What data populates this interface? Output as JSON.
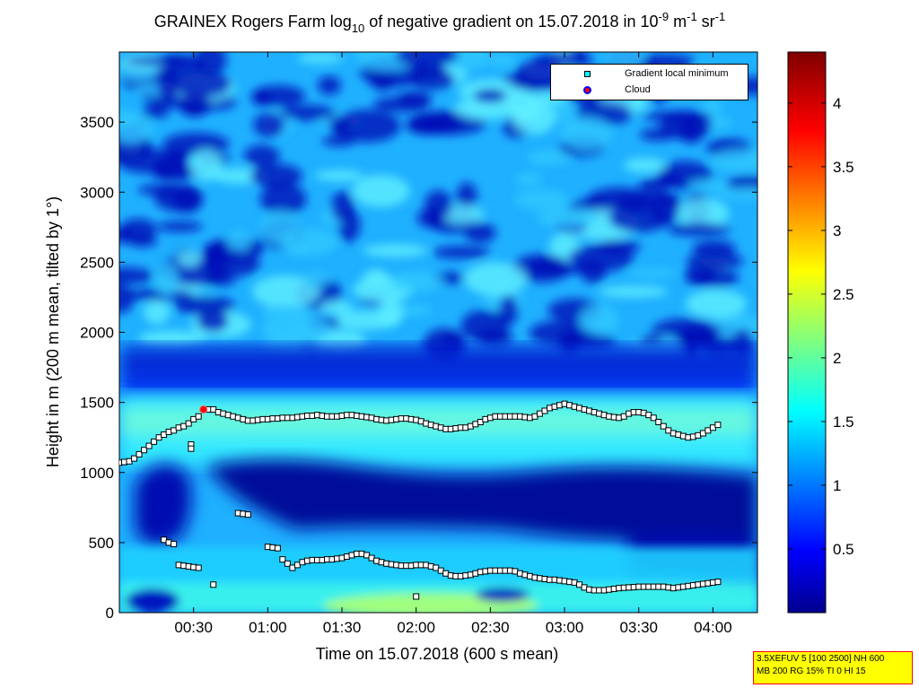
{
  "chart_data": {
    "type": "heatmap",
    "title": {
      "prefix": "GRAINEX Rogers Farm log",
      "sub": "10",
      "middle": " of negative gradient on 15.07.2018 in 10",
      "sup1": "-9",
      "mid2": " m",
      "sup2": "-1",
      "mid3": " sr",
      "sup3": "-1"
    },
    "xlabel": "Time on 15.07.2018 (600 s mean)",
    "ylabel": "Height in m (200 m mean, tilted by 1°)",
    "xlim": [
      0,
      258
    ],
    "ylim": [
      0,
      4000
    ],
    "x_ticks": [
      {
        "value": 30,
        "label": "00:30"
      },
      {
        "value": 60,
        "label": "01:00"
      },
      {
        "value": 90,
        "label": "01:30"
      },
      {
        "value": 120,
        "label": "02:00"
      },
      {
        "value": 150,
        "label": "02:30"
      },
      {
        "value": 180,
        "label": "03:00"
      },
      {
        "value": 210,
        "label": "03:30"
      },
      {
        "value": 240,
        "label": "04:00"
      }
    ],
    "y_ticks": [
      {
        "value": 0,
        "label": "0"
      },
      {
        "value": 500,
        "label": "500"
      },
      {
        "value": 1000,
        "label": "1000"
      },
      {
        "value": 1500,
        "label": "1500"
      },
      {
        "value": 2000,
        "label": "2000"
      },
      {
        "value": 2500,
        "label": "2500"
      },
      {
        "value": 3000,
        "label": "3000"
      },
      {
        "value": 3500,
        "label": "3500"
      }
    ],
    "colorbar": {
      "min": 0,
      "max": 4.4,
      "ticks": [
        {
          "value": 0.5,
          "label": "0.5"
        },
        {
          "value": 1,
          "label": "1"
        },
        {
          "value": 1.5,
          "label": "1.5"
        },
        {
          "value": 2,
          "label": "2"
        },
        {
          "value": 2.5,
          "label": "2.5"
        },
        {
          "value": 3,
          "label": "3"
        },
        {
          "value": 3.5,
          "label": "3.5"
        },
        {
          "value": 4,
          "label": "4"
        }
      ],
      "colormap": "jet"
    },
    "legend": {
      "placement": "top-right",
      "entries": [
        {
          "label": "Gradient local minimum",
          "symbol": "square",
          "color": "#00ffff"
        },
        {
          "label": "Cloud",
          "symbol": "circle",
          "color": "#ff0000",
          "edge": "#0000ff"
        }
      ]
    },
    "series": [
      {
        "name": "Gradient local minimum",
        "points": [
          [
            0,
            1070
          ],
          [
            2,
            1075
          ],
          [
            4,
            1080
          ],
          [
            6,
            1100
          ],
          [
            8,
            1130
          ],
          [
            10,
            1160
          ],
          [
            12,
            1190
          ],
          [
            14,
            1220
          ],
          [
            16,
            1250
          ],
          [
            18,
            1270
          ],
          [
            20,
            1290
          ],
          [
            22,
            1300
          ],
          [
            24,
            1320
          ],
          [
            26,
            1330
          ],
          [
            28,
            1350
          ],
          [
            30,
            1380
          ],
          [
            32,
            1400
          ],
          [
            29,
            1200
          ],
          [
            29,
            1170
          ],
          [
            36,
            1450
          ],
          [
            38,
            1450
          ],
          [
            40,
            1430
          ],
          [
            42,
            1420
          ],
          [
            44,
            1410
          ],
          [
            46,
            1400
          ],
          [
            48,
            1390
          ],
          [
            50,
            1380
          ],
          [
            52,
            1370
          ],
          [
            54,
            1370
          ],
          [
            56,
            1375
          ],
          [
            58,
            1380
          ],
          [
            60,
            1380
          ],
          [
            62,
            1385
          ],
          [
            64,
            1385
          ],
          [
            66,
            1390
          ],
          [
            68,
            1390
          ],
          [
            70,
            1390
          ],
          [
            72,
            1395
          ],
          [
            74,
            1400
          ],
          [
            76,
            1405
          ],
          [
            78,
            1405
          ],
          [
            80,
            1410
          ],
          [
            82,
            1405
          ],
          [
            84,
            1400
          ],
          [
            86,
            1400
          ],
          [
            88,
            1400
          ],
          [
            90,
            1405
          ],
          [
            92,
            1410
          ],
          [
            94,
            1410
          ],
          [
            96,
            1405
          ],
          [
            98,
            1400
          ],
          [
            100,
            1395
          ],
          [
            102,
            1390
          ],
          [
            104,
            1380
          ],
          [
            106,
            1375
          ],
          [
            108,
            1370
          ],
          [
            110,
            1375
          ],
          [
            112,
            1380
          ],
          [
            114,
            1385
          ],
          [
            116,
            1385
          ],
          [
            118,
            1380
          ],
          [
            120,
            1375
          ],
          [
            122,
            1365
          ],
          [
            124,
            1350
          ],
          [
            126,
            1340
          ],
          [
            128,
            1330
          ],
          [
            130,
            1320
          ],
          [
            132,
            1310
          ],
          [
            134,
            1310
          ],
          [
            136,
            1315
          ],
          [
            138,
            1320
          ],
          [
            140,
            1320
          ],
          [
            142,
            1330
          ],
          [
            144,
            1345
          ],
          [
            146,
            1360
          ],
          [
            148,
            1380
          ],
          [
            150,
            1390
          ],
          [
            152,
            1400
          ],
          [
            154,
            1400
          ],
          [
            156,
            1400
          ],
          [
            158,
            1400
          ],
          [
            160,
            1400
          ],
          [
            162,
            1400
          ],
          [
            164,
            1395
          ],
          [
            166,
            1390
          ],
          [
            168,
            1400
          ],
          [
            170,
            1420
          ],
          [
            172,
            1440
          ],
          [
            174,
            1460
          ],
          [
            176,
            1470
          ],
          [
            178,
            1480
          ],
          [
            180,
            1490
          ],
          [
            182,
            1480
          ],
          [
            184,
            1470
          ],
          [
            186,
            1460
          ],
          [
            188,
            1450
          ],
          [
            190,
            1440
          ],
          [
            192,
            1430
          ],
          [
            194,
            1420
          ],
          [
            196,
            1410
          ],
          [
            198,
            1400
          ],
          [
            200,
            1395
          ],
          [
            202,
            1390
          ],
          [
            204,
            1400
          ],
          [
            206,
            1420
          ],
          [
            208,
            1430
          ],
          [
            210,
            1430
          ],
          [
            212,
            1425
          ],
          [
            214,
            1410
          ],
          [
            216,
            1390
          ],
          [
            218,
            1360
          ],
          [
            220,
            1330
          ],
          [
            222,
            1300
          ],
          [
            224,
            1280
          ],
          [
            226,
            1270
          ],
          [
            228,
            1260
          ],
          [
            230,
            1250
          ],
          [
            232,
            1255
          ],
          [
            234,
            1265
          ],
          [
            236,
            1280
          ],
          [
            238,
            1300
          ],
          [
            240,
            1320
          ],
          [
            242,
            1340
          ],
          [
            48,
            710
          ],
          [
            50,
            705
          ],
          [
            52,
            700
          ],
          [
            18,
            520
          ],
          [
            20,
            500
          ],
          [
            22,
            490
          ],
          [
            24,
            340
          ],
          [
            26,
            335
          ],
          [
            28,
            330
          ],
          [
            30,
            325
          ],
          [
            32,
            320
          ],
          [
            38,
            200
          ],
          [
            60,
            470
          ],
          [
            62,
            465
          ],
          [
            64,
            460
          ],
          [
            66,
            380
          ],
          [
            68,
            350
          ],
          [
            70,
            320
          ],
          [
            72,
            340
          ],
          [
            74,
            360
          ],
          [
            76,
            370
          ],
          [
            78,
            375
          ],
          [
            80,
            375
          ],
          [
            82,
            375
          ],
          [
            84,
            380
          ],
          [
            86,
            380
          ],
          [
            88,
            385
          ],
          [
            90,
            390
          ],
          [
            92,
            400
          ],
          [
            94,
            410
          ],
          [
            96,
            420
          ],
          [
            98,
            420
          ],
          [
            100,
            410
          ],
          [
            102,
            390
          ],
          [
            104,
            370
          ],
          [
            106,
            360
          ],
          [
            108,
            350
          ],
          [
            110,
            345
          ],
          [
            112,
            340
          ],
          [
            114,
            335
          ],
          [
            116,
            335
          ],
          [
            118,
            335
          ],
          [
            120,
            340
          ],
          [
            122,
            340
          ],
          [
            124,
            340
          ],
          [
            126,
            330
          ],
          [
            128,
            320
          ],
          [
            130,
            300
          ],
          [
            132,
            280
          ],
          [
            134,
            265
          ],
          [
            136,
            260
          ],
          [
            138,
            260
          ],
          [
            140,
            265
          ],
          [
            142,
            270
          ],
          [
            144,
            280
          ],
          [
            146,
            290
          ],
          [
            148,
            295
          ],
          [
            150,
            300
          ],
          [
            152,
            300
          ],
          [
            154,
            300
          ],
          [
            156,
            300
          ],
          [
            158,
            300
          ],
          [
            160,
            295
          ],
          [
            162,
            280
          ],
          [
            164,
            270
          ],
          [
            166,
            260
          ],
          [
            168,
            250
          ],
          [
            170,
            245
          ],
          [
            172,
            240
          ],
          [
            174,
            235
          ],
          [
            176,
            235
          ],
          [
            178,
            230
          ],
          [
            180,
            225
          ],
          [
            182,
            220
          ],
          [
            184,
            215
          ],
          [
            186,
            200
          ],
          [
            188,
            180
          ],
          [
            190,
            165
          ],
          [
            192,
            160
          ],
          [
            194,
            160
          ],
          [
            196,
            160
          ],
          [
            198,
            165
          ],
          [
            200,
            170
          ],
          [
            202,
            175
          ],
          [
            204,
            178
          ],
          [
            206,
            180
          ],
          [
            208,
            182
          ],
          [
            210,
            185
          ],
          [
            212,
            185
          ],
          [
            214,
            185
          ],
          [
            216,
            185
          ],
          [
            218,
            185
          ],
          [
            220,
            185
          ],
          [
            222,
            180
          ],
          [
            224,
            175
          ],
          [
            226,
            180
          ],
          [
            228,
            185
          ],
          [
            230,
            190
          ],
          [
            232,
            195
          ],
          [
            234,
            200
          ],
          [
            236,
            205
          ],
          [
            238,
            210
          ],
          [
            240,
            215
          ],
          [
            242,
            220
          ],
          [
            120,
            115
          ]
        ]
      },
      {
        "name": "Cloud",
        "points": [
          [
            34,
            1450
          ]
        ]
      }
    ]
  },
  "infobox": {
    "line1": "3.5XEFUV 5 [100 2500] NH 600",
    "line2": "MB 200 RG 15% TI 0 HI 15"
  }
}
